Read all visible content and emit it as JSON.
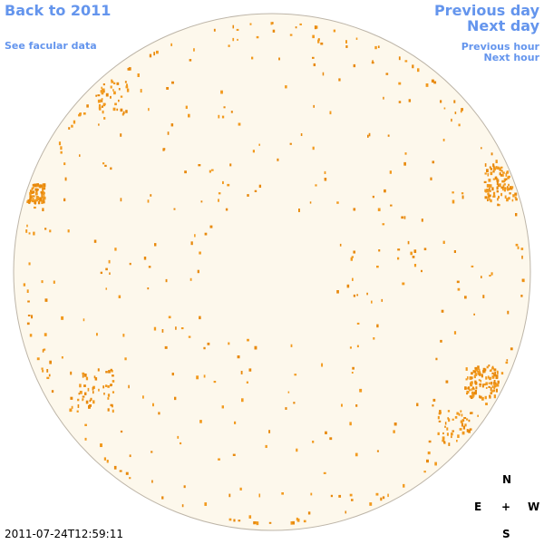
{
  "navigation": {
    "back": "Back to 2011",
    "facular": "See facular data",
    "previous_day": "Previous day",
    "next_day": "Next day",
    "previous_hour": "Previous hour",
    "next_hour": "Next hour"
  },
  "timestamp": "2011-07-24T12:59:11",
  "compass": {
    "north": "N",
    "east": "E",
    "center": "+",
    "west": "W",
    "south": "S"
  }
}
